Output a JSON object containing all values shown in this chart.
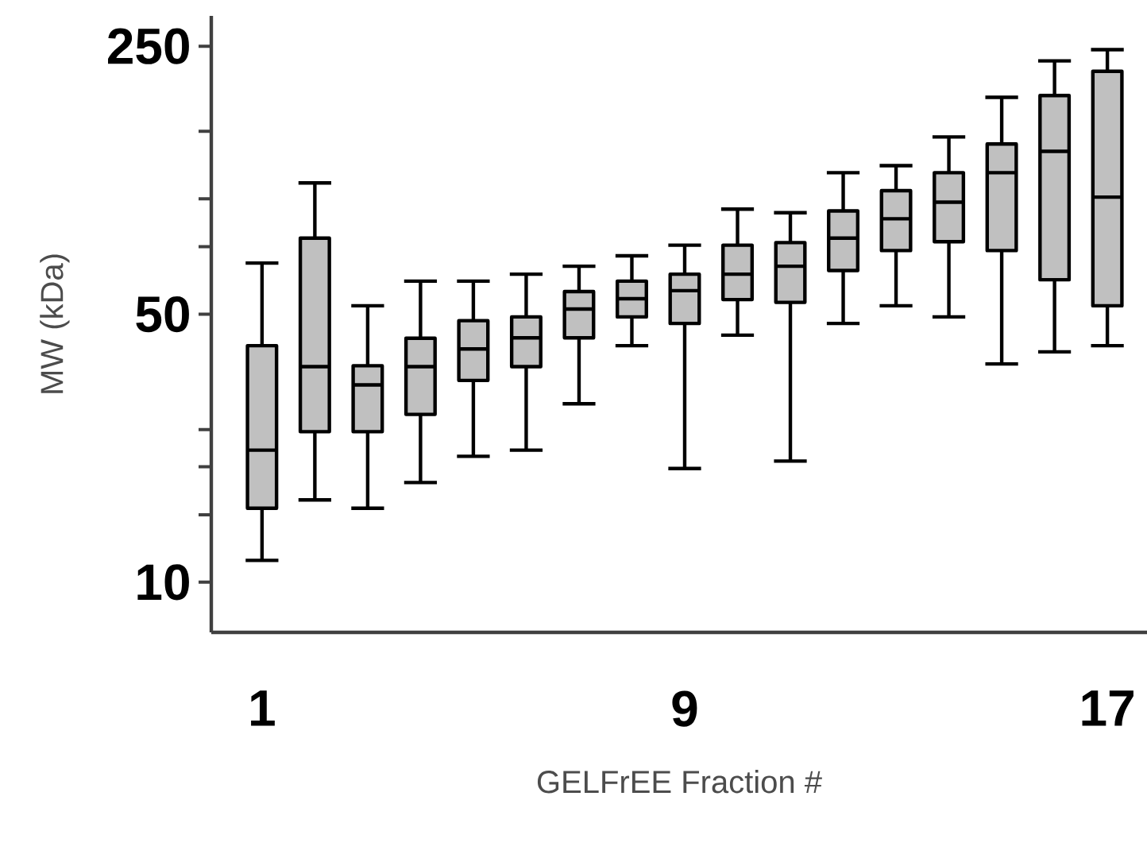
{
  "chart_data": {
    "type": "box",
    "xlabel": "GELFrEE Fraction #",
    "ylabel": "MW (kDa)",
    "log": "y",
    "color": "#c0c0c0",
    "categories": [
      "1",
      null,
      null,
      null,
      null,
      null,
      null,
      null,
      "9",
      null,
      null,
      null,
      null,
      null,
      null,
      null,
      "17"
    ],
    "ylim": [
      7.4,
      300
    ],
    "yticks": [
      10,
      {
        "value": 15,
        "label": null
      },
      {
        "value": 20,
        "label": null
      },
      {
        "value": 25,
        "label": null
      },
      50,
      {
        "value": 75,
        "label": null
      },
      {
        "value": 100,
        "label": null
      },
      {
        "value": 150,
        "label": null
      },
      250
    ],
    "boxes": [
      {
        "low": 11.4,
        "q1": 15.6,
        "median": 22.1,
        "q3": 41.4,
        "high": 68
      },
      {
        "low": 16.4,
        "q1": 24.7,
        "median": 36.5,
        "q3": 79,
        "high": 110
      },
      {
        "low": 15.6,
        "q1": 24.7,
        "median": 32.7,
        "q3": 36.7,
        "high": 52.6
      },
      {
        "low": 18.2,
        "q1": 27.4,
        "median": 36.5,
        "q3": 43.3,
        "high": 61
      },
      {
        "low": 21.3,
        "q1": 33.6,
        "median": 40.6,
        "q3": 48.1,
        "high": 61
      },
      {
        "low": 22.1,
        "q1": 36.5,
        "median": 43.4,
        "q3": 49.2,
        "high": 63.6
      },
      {
        "low": 29.2,
        "q1": 43.4,
        "median": 51.6,
        "q3": 57.3,
        "high": 66.7
      },
      {
        "low": 41.4,
        "q1": 49.2,
        "median": 54.9,
        "q3": 61,
        "high": 71
      },
      {
        "low": 19.8,
        "q1": 47.3,
        "median": 57.6,
        "q3": 63.6,
        "high": 75.7
      },
      {
        "low": 44.1,
        "q1": 54.6,
        "median": 63.6,
        "q3": 75.7,
        "high": 94
      },
      {
        "low": 20.7,
        "q1": 53.7,
        "median": 66.7,
        "q3": 76.9,
        "high": 92
      },
      {
        "low": 47.3,
        "q1": 65,
        "median": 79,
        "q3": 93,
        "high": 117
      },
      {
        "low": 52.6,
        "q1": 73.3,
        "median": 88.7,
        "q3": 105,
        "high": 122
      },
      {
        "low": 49.2,
        "q1": 77.3,
        "median": 98,
        "q3": 117,
        "high": 145
      },
      {
        "low": 37.1,
        "q1": 73.3,
        "median": 117,
        "q3": 139,
        "high": 184
      },
      {
        "low": 39.9,
        "q1": 61.5,
        "median": 133,
        "q3": 186,
        "high": 229
      },
      {
        "low": 41.4,
        "q1": 52.6,
        "median": 101,
        "q3": 215,
        "high": 245
      }
    ]
  }
}
